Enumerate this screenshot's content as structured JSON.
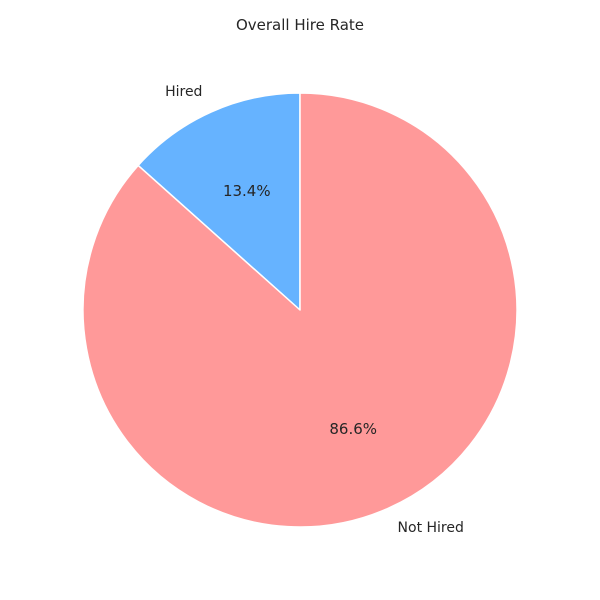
{
  "chart_data": {
    "type": "pie",
    "title": "Overall Hire Rate",
    "slices": [
      {
        "label": "Hired",
        "value": 13.4,
        "pct_label": "13.4%",
        "color": "#66b3ff"
      },
      {
        "label": "Not Hired",
        "value": 86.6,
        "pct_label": "86.6%",
        "color": "#ff9999"
      }
    ],
    "start_angle_deg": 90,
    "direction": "counterclockwise",
    "edge_color": "#ffffff"
  }
}
